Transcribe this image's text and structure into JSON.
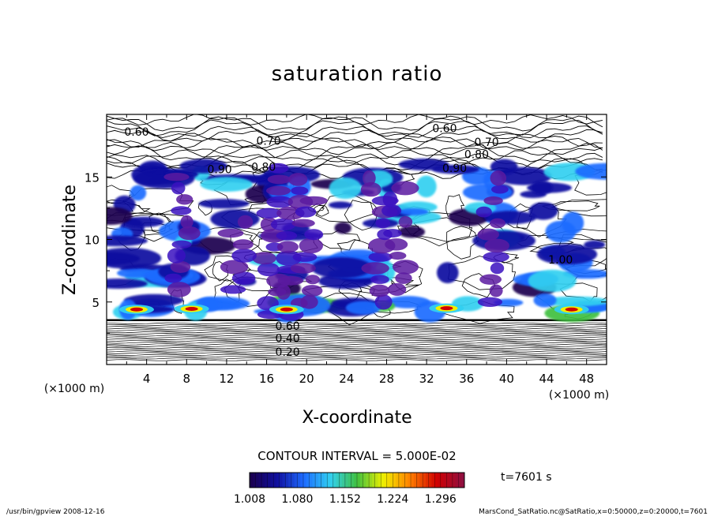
{
  "chart_data": {
    "type": "heatmap",
    "title": "saturation ratio",
    "xlabel": "X-coordinate",
    "ylabel": "Z-coordinate",
    "x_unit": "(×1000 m)",
    "y_unit": "(×1000 m)",
    "x_ticks": [
      4,
      8,
      12,
      16,
      20,
      24,
      28,
      32,
      36,
      40,
      44,
      48
    ],
    "y_ticks": [
      5,
      10,
      15
    ],
    "xlim": [
      0,
      50
    ],
    "ylim": [
      0,
      20
    ],
    "contour_interval": "CONTOUR INTERVAL = 5.000E-02",
    "contour_labels": [
      {
        "x": 3.0,
        "y": 18.6,
        "text": "0.60"
      },
      {
        "x": 33.8,
        "y": 18.9,
        "text": "0.60"
      },
      {
        "x": 16.2,
        "y": 17.9,
        "text": "0.70"
      },
      {
        "x": 38.0,
        "y": 17.8,
        "text": "0.70"
      },
      {
        "x": 11.3,
        "y": 15.6,
        "text": "0.90"
      },
      {
        "x": 15.7,
        "y": 15.8,
        "text": "0.80"
      },
      {
        "x": 37.0,
        "y": 16.8,
        "text": "0.80"
      },
      {
        "x": 34.8,
        "y": 15.7,
        "text": "0.90"
      },
      {
        "x": 45.4,
        "y": 8.4,
        "text": "1.00"
      },
      {
        "x": 18.1,
        "y": 1.0,
        "text": "0.20"
      },
      {
        "x": 18.1,
        "y": 2.1,
        "text": "0.40"
      },
      {
        "x": 18.1,
        "y": 3.1,
        "text": "0.60"
      }
    ],
    "colorbar": {
      "ticks": [
        "1.008",
        "1.080",
        "1.152",
        "1.224",
        "1.296"
      ],
      "range": [
        1.008,
        1.332
      ],
      "colors": [
        "#1a0050",
        "#1010a0",
        "#1e6cff",
        "#32d0f0",
        "#40c040",
        "#f0f000",
        "#ff8000",
        "#d00000",
        "#901040"
      ]
    },
    "time_label": "t=7601 s",
    "footer_left": "/usr/bin/gpview  2008-12-16",
    "footer_right": "MarsCond_SatRatio.nc@SatRatio,x=0:50000,z=0:20000,t=7601",
    "grid": false,
    "legend": "colorbar bottom-center"
  }
}
